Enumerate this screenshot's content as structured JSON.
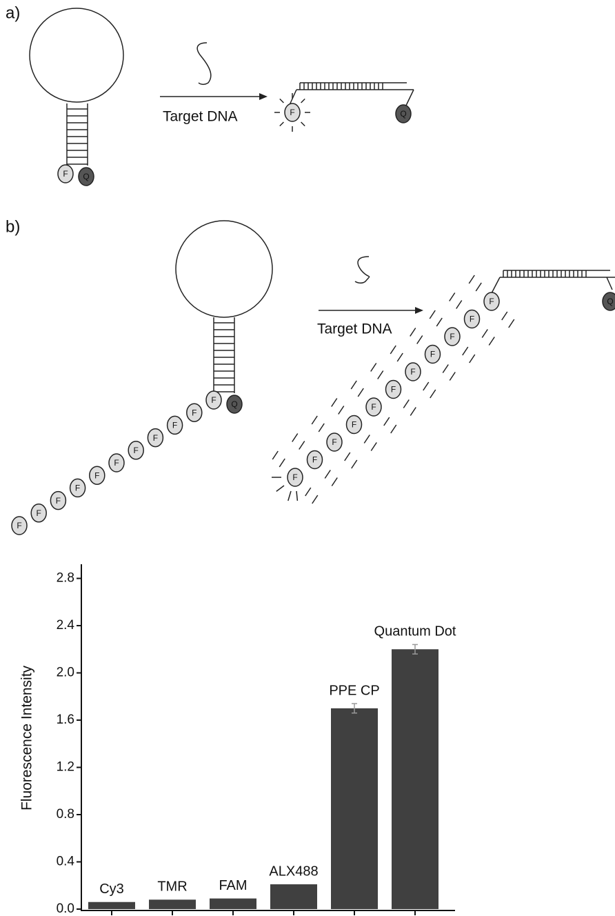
{
  "diagram": {
    "panel_a_label": "a)",
    "panel_b_label": "b)",
    "target_label_a": "Target DNA",
    "target_label_b": "Target DNA",
    "fluorophore": "F",
    "quencher": "Q"
  },
  "chart_data": {
    "type": "bar",
    "y_label": "Fluorescence Intensity",
    "categories": [
      "Cy3",
      "TMR",
      "FAM",
      "ALX488",
      "PPE CP",
      "Quantum Dot"
    ],
    "values": [
      0.06,
      0.08,
      0.09,
      0.21,
      1.7,
      2.2
    ],
    "errors": [
      null,
      null,
      null,
      null,
      0.04,
      0.04
    ],
    "color": "#404040",
    "ylim": [
      0,
      2.92
    ],
    "yticks": [
      {
        "value": 0,
        "label": "0.0"
      },
      0.4,
      0.8,
      1.2,
      1.6,
      {
        "value": 2,
        "label": "2.0"
      },
      2.4,
      2.8
    ]
  }
}
